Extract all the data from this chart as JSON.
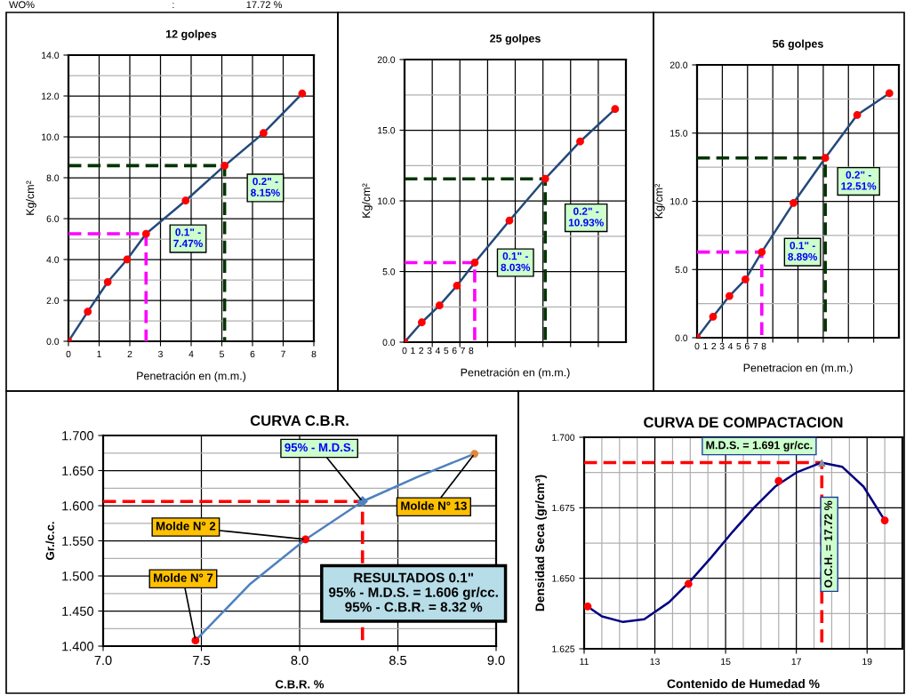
{
  "chart_data": [
    {
      "type": "line",
      "title": "12 golpes",
      "xlabel": "Penetración en (m.m.)",
      "ylabel": "Kg/cm²",
      "grid": true,
      "xlim": [
        0,
        8
      ],
      "xticks": [
        0,
        1,
        2,
        3,
        4,
        5,
        6,
        7,
        8
      ],
      "ylim": [
        0,
        14
      ],
      "yticks": [
        {
          "value": 0,
          "label": "0.0"
        },
        {
          "value": 1,
          "label": null
        },
        {
          "value": 2,
          "label": "2.0"
        },
        {
          "value": 3,
          "label": null
        },
        {
          "value": 4,
          "label": "4.0"
        },
        {
          "value": 5,
          "label": null
        },
        {
          "value": 6,
          "label": "6.0"
        },
        {
          "value": 7,
          "label": null
        },
        {
          "value": 8,
          "label": "8.0"
        },
        {
          "value": 9,
          "label": null
        },
        {
          "value": 10,
          "label": "10.0"
        },
        {
          "value": 11,
          "label": null
        },
        {
          "value": 12,
          "label": "12.0"
        },
        {
          "value": 13,
          "label": null
        },
        {
          "value": 14,
          "label": "14.0"
        }
      ],
      "series": [
        {
          "color": "#ff00ff",
          "line_style": "dashed",
          "marker": "none",
          "x": [
            0,
            2.53,
            2.53
          ],
          "values": [
            5.26,
            5.26,
            0
          ]
        },
        {
          "color": "#003300",
          "line_style": "dashed",
          "marker": "none",
          "x": [
            0,
            5.09,
            5.09
          ],
          "values": [
            8.59,
            8.59,
            0
          ]
        },
        {
          "type": "scatter",
          "color": "#ff0000",
          "marker": "circle",
          "x": [
            0,
            0.63,
            1.28,
            1.91,
            2.53,
            3.82,
            5.09,
            6.36,
            7.62
          ],
          "values": [
            0,
            1.45,
            2.9,
            4.0,
            5.26,
            6.88,
            8.59,
            10.19,
            12.12
          ]
        },
        {
          "color": "#24497a",
          "line_style": "solid",
          "marker": "none",
          "x": [
            0,
            0.63,
            1.28,
            1.91,
            2.53,
            3.82,
            5.09,
            6.36,
            7.62
          ],
          "values": [
            0,
            1.45,
            2.9,
            4.0,
            5.26,
            6.88,
            8.59,
            10.19,
            12.12
          ]
        }
      ],
      "annotations": [
        {
          "text": "0.1\" -\n7.47%",
          "x": 2.53,
          "y": 5.26
        },
        {
          "text": "0.2\" -\n8.15%",
          "x": 5.09,
          "y": 8.59
        },
        "WO%                                                  :                          17.72 %"
      ]
    },
    {
      "type": "line",
      "title": "25 golpes",
      "xlabel": "Penetración en (m.m.)",
      "ylabel": "Kg/cm²",
      "grid": true,
      "xlim": [
        0,
        26.6
      ],
      "xticks": [
        0,
        1,
        2,
        3,
        4,
        5,
        6,
        7,
        8,
        {
          "value": 3.33,
          "label": null
        },
        {
          "value": 6.65,
          "label": null
        },
        {
          "value": 9.98,
          "label": null
        },
        {
          "value": 13.3,
          "label": null
        },
        {
          "value": 16.63,
          "label": null
        },
        {
          "value": 19.95,
          "label": null
        },
        {
          "value": 23.28,
          "label": null
        }
      ],
      "ylim": [
        0,
        20
      ],
      "yticks": [
        {
          "value": 0,
          "label": "0.0"
        },
        {
          "value": 2.5,
          "label": null
        },
        {
          "value": 5,
          "label": "5.0"
        },
        {
          "value": 7.5,
          "label": null
        },
        {
          "value": 10,
          "label": "10.0"
        },
        {
          "value": 12.5,
          "label": null
        },
        {
          "value": 15,
          "label": "15.0"
        },
        {
          "value": 17.5,
          "label": null
        },
        {
          "value": 20,
          "label": "20.0"
        }
      ],
      "series": [
        {
          "color": "#ff00ff",
          "line_style": "dashed",
          "marker": "none",
          "x": [
            0,
            8.43,
            8.43
          ],
          "values": [
            5.63,
            5.63,
            0
          ]
        },
        {
          "color": "#003300",
          "line_style": "dashed",
          "marker": "none",
          "x": [
            0,
            16.9,
            16.9
          ],
          "values": [
            11.56,
            11.56,
            0
          ]
        },
        {
          "type": "scatter",
          "color": "#ff0000",
          "marker": "circle",
          "x": [
            0,
            2.07,
            4.2,
            6.3,
            8.43,
            12.6,
            16.9,
            21.1,
            25.3
          ],
          "values": [
            0,
            1.4,
            2.6,
            4.0,
            5.63,
            8.6,
            11.56,
            14.2,
            16.5
          ]
        },
        {
          "color": "#24497a",
          "line_style": "solid",
          "marker": "none",
          "x": [
            0,
            2.07,
            4.2,
            6.3,
            8.43,
            12.6,
            16.9,
            21.1,
            25.3
          ],
          "values": [
            0,
            1.4,
            2.6,
            4.0,
            5.63,
            8.6,
            11.56,
            14.2,
            16.5
          ]
        }
      ],
      "annotations": [
        {
          "text": "0.1\" -\n8.03%",
          "x": 8.43,
          "y": 5.63
        },
        "0.2\" -\n10.93%"
      ]
    },
    {
      "type": "line",
      "title": "56 golpes",
      "xlabel": "Penetracion en (m.m.)",
      "ylabel": "Kg/cm²",
      "grid": true,
      "xlim": [
        0,
        24.2
      ],
      "xticks": [
        0,
        1,
        2,
        3,
        4,
        5,
        6,
        7,
        8,
        {
          "value": 3.03,
          "label": null
        },
        {
          "value": 6.05,
          "label": null
        },
        {
          "value": 9.08,
          "label": null
        },
        {
          "value": 12.1,
          "label": null
        },
        {
          "value": 15.13,
          "label": null
        },
        {
          "value": 18.15,
          "label": null
        },
        {
          "value": 21.18,
          "label": null
        }
      ],
      "ylim": [
        0,
        20
      ],
      "yticks": [
        {
          "value": 0,
          "label": "0.0"
        },
        {
          "value": 2.5,
          "label": null
        },
        {
          "value": 5,
          "label": "5.0"
        },
        {
          "value": 7.5,
          "label": null
        },
        {
          "value": 10,
          "label": "10.0"
        },
        {
          "value": 12.5,
          "label": null
        },
        {
          "value": 15,
          "label": "15.0"
        },
        {
          "value": 17.5,
          "label": null
        },
        {
          "value": 20,
          "label": "20.0"
        }
      ],
      "series": [
        {
          "color": "#ff00ff",
          "line_style": "dashed",
          "marker": "none",
          "x": [
            0,
            7.76,
            7.76
          ],
          "values": [
            6.28,
            6.28,
            0
          ]
        },
        {
          "color": "#003300",
          "line_style": "dashed",
          "marker": "none",
          "x": [
            0,
            15.37,
            15.37
          ],
          "values": [
            13.18,
            13.18,
            0
          ]
        },
        {
          "type": "scatter",
          "color": "#ff0000",
          "marker": "circle",
          "x": [
            0,
            1.92,
            3.88,
            5.8,
            7.76,
            11.57,
            15.37,
            19.2,
            23.06
          ],
          "values": [
            0,
            1.54,
            3.06,
            4.28,
            6.28,
            9.88,
            13.18,
            16.33,
            17.92
          ]
        },
        {
          "color": "#24497a",
          "line_style": "solid",
          "marker": "none",
          "x": [
            0,
            1.92,
            3.88,
            5.8,
            7.76,
            11.57,
            15.37,
            19.2,
            23.06
          ],
          "values": [
            0,
            1.54,
            3.06,
            4.28,
            6.28,
            9.88,
            13.18,
            16.33,
            17.92
          ]
        }
      ],
      "annotations": [
        {
          "text": "0.1\" -\n8.89%",
          "x": 7.76,
          "y": 6.28
        },
        {
          "text": "0.2\" -\n12.51%",
          "x": 15.37,
          "y": 13.18
        }
      ]
    },
    {
      "type": "line",
      "title": "CURVA C.B.R.",
      "xlabel": "C.B.R. %",
      "ylabel": "Gr./c.c.",
      "grid": true,
      "xlim": [
        7.0,
        9.0
      ],
      "xticks": [
        {
          "value": 7.0,
          "label": "7.0"
        },
        {
          "value": 7.5,
          "label": "7.5"
        },
        {
          "value": 8.0,
          "label": "8.0"
        },
        {
          "value": 8.5,
          "label": "8.5"
        },
        {
          "value": 9.0,
          "label": "9.0"
        }
      ],
      "ylim": [
        1.4,
        1.7
      ],
      "yticks": [
        {
          "value": 1.4,
          "label": "1.400"
        },
        {
          "value": 1.425,
          "label": null
        },
        {
          "value": 1.45,
          "label": "1.450"
        },
        {
          "value": 1.475,
          "label": null
        },
        {
          "value": 1.5,
          "label": "1.500"
        },
        {
          "value": 1.525,
          "label": null
        },
        {
          "value": 1.55,
          "label": "1.550"
        },
        {
          "value": 1.575,
          "label": null
        },
        {
          "value": 1.6,
          "label": "1.600"
        },
        {
          "value": 1.625,
          "label": null
        },
        {
          "value": 1.65,
          "label": "1.650"
        },
        {
          "value": 1.675,
          "label": null
        },
        {
          "value": 1.7,
          "label": "1.700"
        }
      ],
      "series": [
        {
          "color": "#ff0000",
          "line_style": "dashed",
          "marker": "none",
          "x": [
            7.0,
            8.32,
            8.32
          ],
          "values": [
            1.606,
            1.606,
            1.4
          ]
        },
        {
          "color": "#4f81bd",
          "line_style": "solid",
          "marker": "none",
          "x": [
            7.47,
            7.75,
            8.03,
            8.32,
            8.6,
            8.89
          ],
          "values": [
            1.408,
            1.489,
            1.552,
            1.606,
            1.641,
            1.674
          ]
        },
        {
          "type": "scatter",
          "color": "#ff0000",
          "marker": "circle",
          "x": [
            7.47,
            8.03
          ],
          "values": [
            1.408,
            1.552
          ]
        },
        {
          "type": "scatter",
          "color": "#e0893a",
          "marker": "circle",
          "x": [
            8.89
          ],
          "values": [
            1.674
          ]
        },
        {
          "type": "scatter",
          "color": "#4f81bd",
          "marker": "diamond",
          "x": [
            8.32
          ],
          "values": [
            1.606
          ]
        }
      ],
      "annotations": [
        {
          "text": "95% - M.D.S.",
          "x": 8.32,
          "y": 1.606
        },
        {
          "text": "Molde N° 7",
          "x": 7.47,
          "y": 1.408
        },
        {
          "text": "Molde N° 2",
          "x": 8.03,
          "y": 1.552
        },
        {
          "text": "Molde N° 13",
          "x": 8.89,
          "y": 1.674
        },
        "RESULTADOS 0.1\"\n95% - M.D.S. = 1.606 gr/cc.\n95% - C.B.R. = 8.32 %"
      ]
    },
    {
      "type": "line",
      "title": "CURVA DE COMPACTACION",
      "xlabel": "Contenido de Humedad %",
      "ylabel": "Densidad Seca (gr/cm³)",
      "grid": true,
      "xlim": [
        11,
        20
      ],
      "xticks": [
        11,
        13,
        15,
        17,
        19,
        {
          "value": 11.5,
          "label": null
        },
        {
          "value": 12,
          "label": null
        },
        {
          "value": 12.5,
          "label": null
        },
        {
          "value": 13.5,
          "label": null
        },
        {
          "value": 14,
          "label": null
        },
        {
          "value": 14.5,
          "label": null
        },
        {
          "value": 15.5,
          "label": null
        },
        {
          "value": 16,
          "label": null
        },
        {
          "value": 16.5,
          "label": null
        },
        {
          "value": 17.5,
          "label": null
        },
        {
          "value": 18,
          "label": null
        },
        {
          "value": 18.5,
          "label": null
        },
        {
          "value": 19.5,
          "label": null
        }
      ],
      "ylim": [
        1.625,
        1.7
      ],
      "yticks": [
        {
          "value": 1.625,
          "label": "1.625"
        },
        {
          "value": 1.6375,
          "label": null
        },
        {
          "value": 1.65,
          "label": "1.650"
        },
        {
          "value": 1.6625,
          "label": null
        },
        {
          "value": 1.675,
          "label": "1.675"
        },
        {
          "value": 1.6875,
          "label": null
        },
        {
          "value": 1.7,
          "label": "1.700"
        }
      ],
      "series": [
        {
          "color": "#ff0000",
          "line_style": "dashed",
          "marker": "none",
          "x": [
            11,
            17.72,
            17.72
          ],
          "values": [
            1.691,
            1.691,
            1.625
          ]
        },
        {
          "type": "scatter",
          "color": "#ff0000",
          "marker": "circle",
          "x": [
            11.1,
            13.95,
            16.5,
            19.5
          ],
          "values": [
            1.64,
            1.648,
            1.6845,
            1.6705
          ]
        },
        {
          "color": "#000080",
          "line_style": "solid",
          "marker": "none",
          "x": [
            11.1,
            11.5,
            12.1,
            12.7,
            13.4,
            14.0,
            14.6,
            15.2,
            15.8,
            16.4,
            17.0,
            17.7,
            18.3,
            18.9,
            19.5
          ],
          "values": [
            1.64,
            1.6365,
            1.6345,
            1.6355,
            1.6415,
            1.649,
            1.6575,
            1.6665,
            1.675,
            1.6825,
            1.6875,
            1.691,
            1.6895,
            1.6825,
            1.6705
          ]
        },
        {
          "type": "scatter",
          "color": "#8c8ca0",
          "marker": "triangle",
          "x": [
            17.72
          ],
          "values": [
            1.691
          ]
        }
      ],
      "annotations": [
        "M.D.S. = 1.691 gr/cc.",
        "O.C.H. = 17.72 %"
      ]
    }
  ]
}
